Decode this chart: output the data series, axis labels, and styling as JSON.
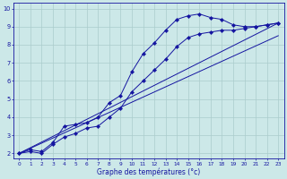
{
  "xlabel": "Graphe des températures (°c)",
  "xlim": [
    -0.5,
    23.5
  ],
  "ylim": [
    1.7,
    10.3
  ],
  "xticks": [
    0,
    1,
    2,
    3,
    4,
    5,
    6,
    7,
    8,
    9,
    10,
    11,
    12,
    13,
    14,
    15,
    16,
    17,
    18,
    19,
    20,
    21,
    22,
    23
  ],
  "yticks": [
    2,
    3,
    4,
    5,
    6,
    7,
    8,
    9,
    10
  ],
  "background_color": "#cce8e8",
  "grid_color": "#aacccc",
  "line_color": "#1414a0",
  "series": [
    {
      "x": [
        0,
        1,
        2,
        3,
        4,
        5,
        6,
        7,
        8,
        9,
        10,
        11,
        12,
        13,
        14,
        15,
        16,
        17,
        18,
        19,
        20,
        21,
        22,
        23
      ],
      "y": [
        2.0,
        2.2,
        2.1,
        2.6,
        3.5,
        3.6,
        3.7,
        4.0,
        4.8,
        5.2,
        6.5,
        7.5,
        8.1,
        8.8,
        9.4,
        9.6,
        9.7,
        9.5,
        9.4,
        9.1,
        9.0,
        9.0,
        9.1,
        9.2
      ],
      "has_markers": true
    },
    {
      "x": [
        0,
        1,
        2,
        3,
        4,
        5,
        6,
        7,
        8,
        9,
        10,
        11,
        12,
        13,
        14,
        15,
        16,
        17,
        18,
        19,
        20,
        21,
        22,
        23
      ],
      "y": [
        2.0,
        2.1,
        2.0,
        2.5,
        2.9,
        3.1,
        3.4,
        3.5,
        4.0,
        4.5,
        5.4,
        6.0,
        6.6,
        7.2,
        7.9,
        8.4,
        8.6,
        8.7,
        8.8,
        8.8,
        8.9,
        9.0,
        9.1,
        9.2
      ],
      "has_markers": true
    },
    {
      "x": [
        0,
        23
      ],
      "y": [
        2.0,
        9.2
      ],
      "has_markers": false
    },
    {
      "x": [
        0,
        23
      ],
      "y": [
        2.0,
        8.5
      ],
      "has_markers": false
    }
  ]
}
